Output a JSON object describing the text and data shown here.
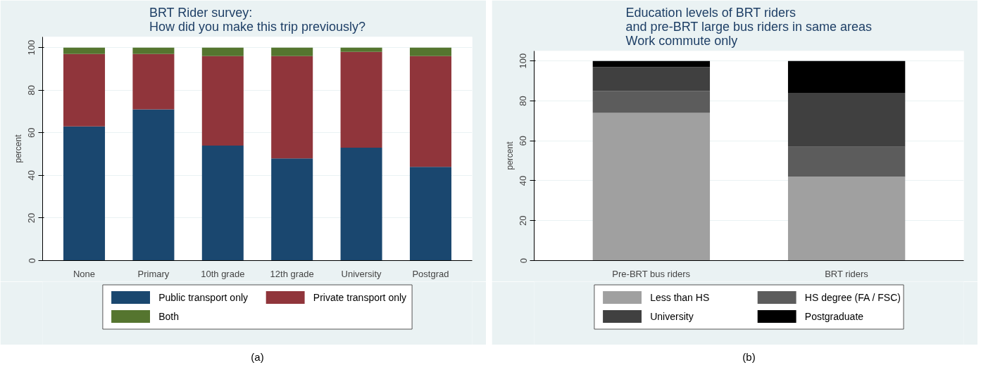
{
  "chart_data": [
    {
      "type": "bar",
      "title": "BRT Rider survey:\nHow did you make this trip previously?",
      "ylabel": "percent",
      "categories": [
        "None",
        "Primary",
        "10th grade",
        "12th grade",
        "University",
        "Postgrad"
      ],
      "stacked": true,
      "ylim": [
        0,
        105
      ],
      "yticks": [
        0,
        20,
        40,
        60,
        80,
        100
      ],
      "grid": "y",
      "legend": "bottom",
      "annotations": [
        "(a)"
      ],
      "series": [
        {
          "name": "Public transport only",
          "color": "#1a476f",
          "values": [
            63,
            71,
            54,
            48,
            53,
            44
          ]
        },
        {
          "name": "Private transport only",
          "color": "#90353b",
          "values": [
            34,
            26,
            42,
            48,
            45,
            52
          ]
        },
        {
          "name": "Both",
          "color": "#55752f",
          "values": [
            3,
            3,
            4,
            4,
            2,
            4
          ]
        }
      ]
    },
    {
      "type": "bar",
      "title": "Education levels of BRT riders\nand pre-BRT large bus riders in same areas\nWork commute only",
      "ylabel": "percent",
      "categories": [
        "Pre-BRT bus riders",
        "BRT riders"
      ],
      "stacked": true,
      "ylim": [
        0,
        105
      ],
      "yticks": [
        0,
        20,
        40,
        60,
        80,
        100
      ],
      "grid": "y",
      "legend": "bottom",
      "annotations": [
        "(b)"
      ],
      "series": [
        {
          "name": "Less than HS",
          "color": "#a0a0a0",
          "values": [
            74,
            42
          ]
        },
        {
          "name": "HS degree (FA / FSC)",
          "color": "#5c5c5c",
          "values": [
            11,
            15
          ]
        },
        {
          "name": "University",
          "color": "#404040",
          "values": [
            12,
            27
          ]
        },
        {
          "name": "Postgraduate",
          "color": "#000000",
          "values": [
            3,
            16
          ]
        }
      ]
    }
  ]
}
